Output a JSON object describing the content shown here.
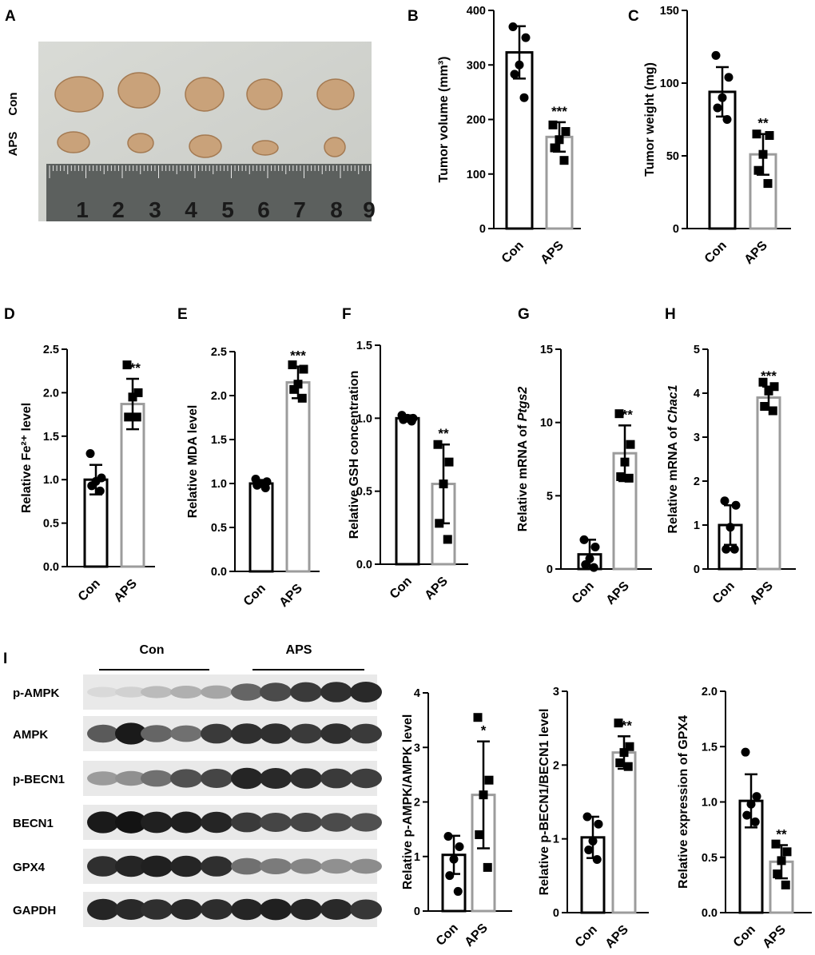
{
  "panel_a": {
    "label": "A",
    "row_labels": [
      "Con",
      "APS"
    ],
    "ruler_numbers": [
      "1",
      "2",
      "3",
      "4",
      "5",
      "6",
      "7",
      "8",
      "9"
    ]
  },
  "western_blot": {
    "label": "I",
    "groups": [
      "Con",
      "APS"
    ],
    "rows": [
      {
        "name": "p-AMPK",
        "intensity": [
          0.06,
          0.1,
          0.2,
          0.25,
          0.3,
          0.6,
          0.72,
          0.8,
          0.85,
          0.88
        ]
      },
      {
        "name": "AMPK",
        "intensity": [
          0.65,
          0.95,
          0.6,
          0.55,
          0.8,
          0.85,
          0.85,
          0.8,
          0.85,
          0.8
        ]
      },
      {
        "name": "p-BECN1",
        "intensity": [
          0.35,
          0.4,
          0.55,
          0.7,
          0.75,
          0.9,
          0.88,
          0.85,
          0.8,
          0.78
        ]
      },
      {
        "name": "BECN1",
        "intensity": [
          0.95,
          0.98,
          0.92,
          0.93,
          0.9,
          0.8,
          0.75,
          0.75,
          0.72,
          0.7
        ]
      },
      {
        "name": "GPX4",
        "intensity": [
          0.85,
          0.9,
          0.92,
          0.9,
          0.85,
          0.55,
          0.5,
          0.45,
          0.4,
          0.42
        ]
      },
      {
        "name": "GAPDH",
        "intensity": [
          0.9,
          0.88,
          0.85,
          0.88,
          0.86,
          0.9,
          0.92,
          0.9,
          0.88,
          0.82
        ]
      }
    ]
  },
  "chart_data": [
    {
      "panel": "B",
      "type": "bar",
      "categories": [
        "Con",
        "APS"
      ],
      "ylabel": "Tumor volume (mm³)",
      "ylim": [
        0,
        400
      ],
      "yticks": [
        0,
        100,
        200,
        300,
        400
      ],
      "means": [
        323,
        168
      ],
      "sd": [
        48,
        27
      ],
      "points": [
        [
          370,
          350,
          300,
          283,
          240
        ],
        [
          190,
          178,
          163,
          148,
          125
        ]
      ],
      "markers": [
        "circle",
        "square"
      ],
      "significance": [
        "",
        "***"
      ]
    },
    {
      "panel": "C",
      "type": "bar",
      "categories": [
        "Con",
        "APS"
      ],
      "ylabel": "Tumor weight (mg)",
      "ylim": [
        0,
        150
      ],
      "yticks": [
        0,
        50,
        100,
        150
      ],
      "means": [
        94,
        51
      ],
      "sd": [
        17,
        14
      ],
      "points": [
        [
          119,
          104,
          90,
          83,
          75
        ],
        [
          65,
          64,
          51,
          40,
          31
        ]
      ],
      "markers": [
        "circle",
        "square"
      ],
      "significance": [
        "",
        "**"
      ]
    },
    {
      "panel": "D",
      "type": "bar",
      "categories": [
        "Con",
        "APS"
      ],
      "ylabel": "Relative Fe²⁺ level",
      "ylim": [
        0,
        2.5
      ],
      "yticks": [
        "0.0",
        "0.5",
        "1.0",
        "1.5",
        "2.0",
        "2.5"
      ],
      "means": [
        1.0,
        1.87
      ],
      "sd": [
        0.17,
        0.29
      ],
      "points": [
        [
          1.3,
          1.02,
          0.98,
          0.93,
          0.87
        ],
        [
          2.32,
          2.0,
          1.95,
          1.72,
          1.72
        ]
      ],
      "markers": [
        "circle",
        "square"
      ],
      "significance": [
        "",
        "***"
      ]
    },
    {
      "panel": "E",
      "type": "bar",
      "categories": [
        "Con",
        "APS"
      ],
      "ylabel": "Relative MDA level",
      "ylim": [
        0,
        2.5
      ],
      "yticks": [
        "0.0",
        "0.5",
        "1.0",
        "1.5",
        "2.0",
        "2.5"
      ],
      "means": [
        1.0,
        2.15
      ],
      "sd": [
        0.04,
        0.18
      ],
      "points": [
        [
          1.05,
          1.02,
          1.0,
          0.98,
          0.95
        ],
        [
          2.35,
          2.3,
          2.13,
          2.07,
          1.97
        ]
      ],
      "markers": [
        "circle",
        "square"
      ],
      "significance": [
        "",
        "***"
      ]
    },
    {
      "panel": "F",
      "type": "bar",
      "categories": [
        "Con",
        "APS"
      ],
      "ylabel": "Relative GSH concentration",
      "ylim": [
        0,
        1.5
      ],
      "yticks": [
        "0.0",
        "0.5",
        "1.0",
        "1.5"
      ],
      "means": [
        1.0,
        0.55
      ],
      "sd": [
        0.02,
        0.27
      ],
      "points": [
        [
          1.02,
          1.0,
          1.0,
          0.99,
          0.98
        ],
        [
          0.82,
          0.7,
          0.55,
          0.28,
          0.17
        ]
      ],
      "markers": [
        "circle",
        "square"
      ],
      "significance": [
        "",
        "**"
      ]
    },
    {
      "panel": "G",
      "type": "bar",
      "categories": [
        "Con",
        "APS"
      ],
      "ylabel": "Relative mRNA of Ptgs2",
      "ylabel_parts": [
        "Relative mRNA of ",
        "Ptgs2"
      ],
      "ylim": [
        0,
        15
      ],
      "yticks": [
        0,
        5,
        10,
        15
      ],
      "means": [
        1.0,
        7.9
      ],
      "sd": [
        1.0,
        1.9
      ],
      "points": [
        [
          2.0,
          1.5,
          0.7,
          0.3,
          0.1
        ],
        [
          10.6,
          8.5,
          7.3,
          6.3,
          6.2
        ]
      ],
      "markers": [
        "circle",
        "square"
      ],
      "significance": [
        "",
        "***"
      ]
    },
    {
      "panel": "H",
      "type": "bar",
      "categories": [
        "Con",
        "APS"
      ],
      "ylabel": "Relative mRNA of Chac1",
      "ylabel_parts": [
        "Relative mRNA of ",
        "Chac1"
      ],
      "ylim": [
        0,
        5
      ],
      "yticks": [
        0,
        1,
        2,
        3,
        4,
        5
      ],
      "means": [
        1.0,
        3.9
      ],
      "sd": [
        0.45,
        0.25
      ],
      "points": [
        [
          1.55,
          1.45,
          0.95,
          0.45,
          0.45
        ],
        [
          4.25,
          4.15,
          4.05,
          3.7,
          3.6
        ]
      ],
      "markers": [
        "circle",
        "square"
      ],
      "significance": [
        "",
        "***"
      ]
    },
    {
      "panel": "I-1",
      "type": "bar",
      "categories": [
        "Con",
        "APS"
      ],
      "ylabel": "Relative p-AMPK/AMPK level",
      "ylim": [
        0,
        4
      ],
      "yticks": [
        0,
        1,
        2,
        3,
        4
      ],
      "means": [
        1.03,
        2.13
      ],
      "sd": [
        0.35,
        0.98
      ],
      "points": [
        [
          1.37,
          1.18,
          0.95,
          0.65,
          0.36
        ],
        [
          3.55,
          2.4,
          2.13,
          1.4,
          0.8
        ]
      ],
      "markers": [
        "circle",
        "square"
      ],
      "significance": [
        "",
        "*"
      ]
    },
    {
      "panel": "I-2",
      "type": "bar",
      "categories": [
        "Con",
        "APS"
      ],
      "ylabel": "Relative p-BECN1/BECN1 level",
      "ylim": [
        0,
        3
      ],
      "yticks": [
        0,
        1,
        2,
        3
      ],
      "means": [
        1.02,
        2.17
      ],
      "sd": [
        0.28,
        0.22
      ],
      "points": [
        [
          1.3,
          1.2,
          0.97,
          0.85,
          0.72
        ],
        [
          2.57,
          2.25,
          2.17,
          2.03,
          1.98
        ]
      ],
      "markers": [
        "circle",
        "square"
      ],
      "significance": [
        "",
        "***"
      ]
    },
    {
      "panel": "I-3",
      "type": "bar",
      "categories": [
        "Con",
        "APS"
      ],
      "ylabel": "Relative expression of GPX4",
      "ylim": [
        0,
        2.0
      ],
      "yticks": [
        "0.0",
        "0.5",
        "1.0",
        "1.5",
        "2.0"
      ],
      "means": [
        1.01,
        0.46
      ],
      "sd": [
        0.24,
        0.15
      ],
      "points": [
        [
          1.45,
          1.05,
          0.98,
          0.88,
          0.82
        ],
        [
          0.62,
          0.55,
          0.47,
          0.35,
          0.25
        ]
      ],
      "markers": [
        "circle",
        "square"
      ],
      "significance": [
        "",
        "**"
      ]
    }
  ]
}
